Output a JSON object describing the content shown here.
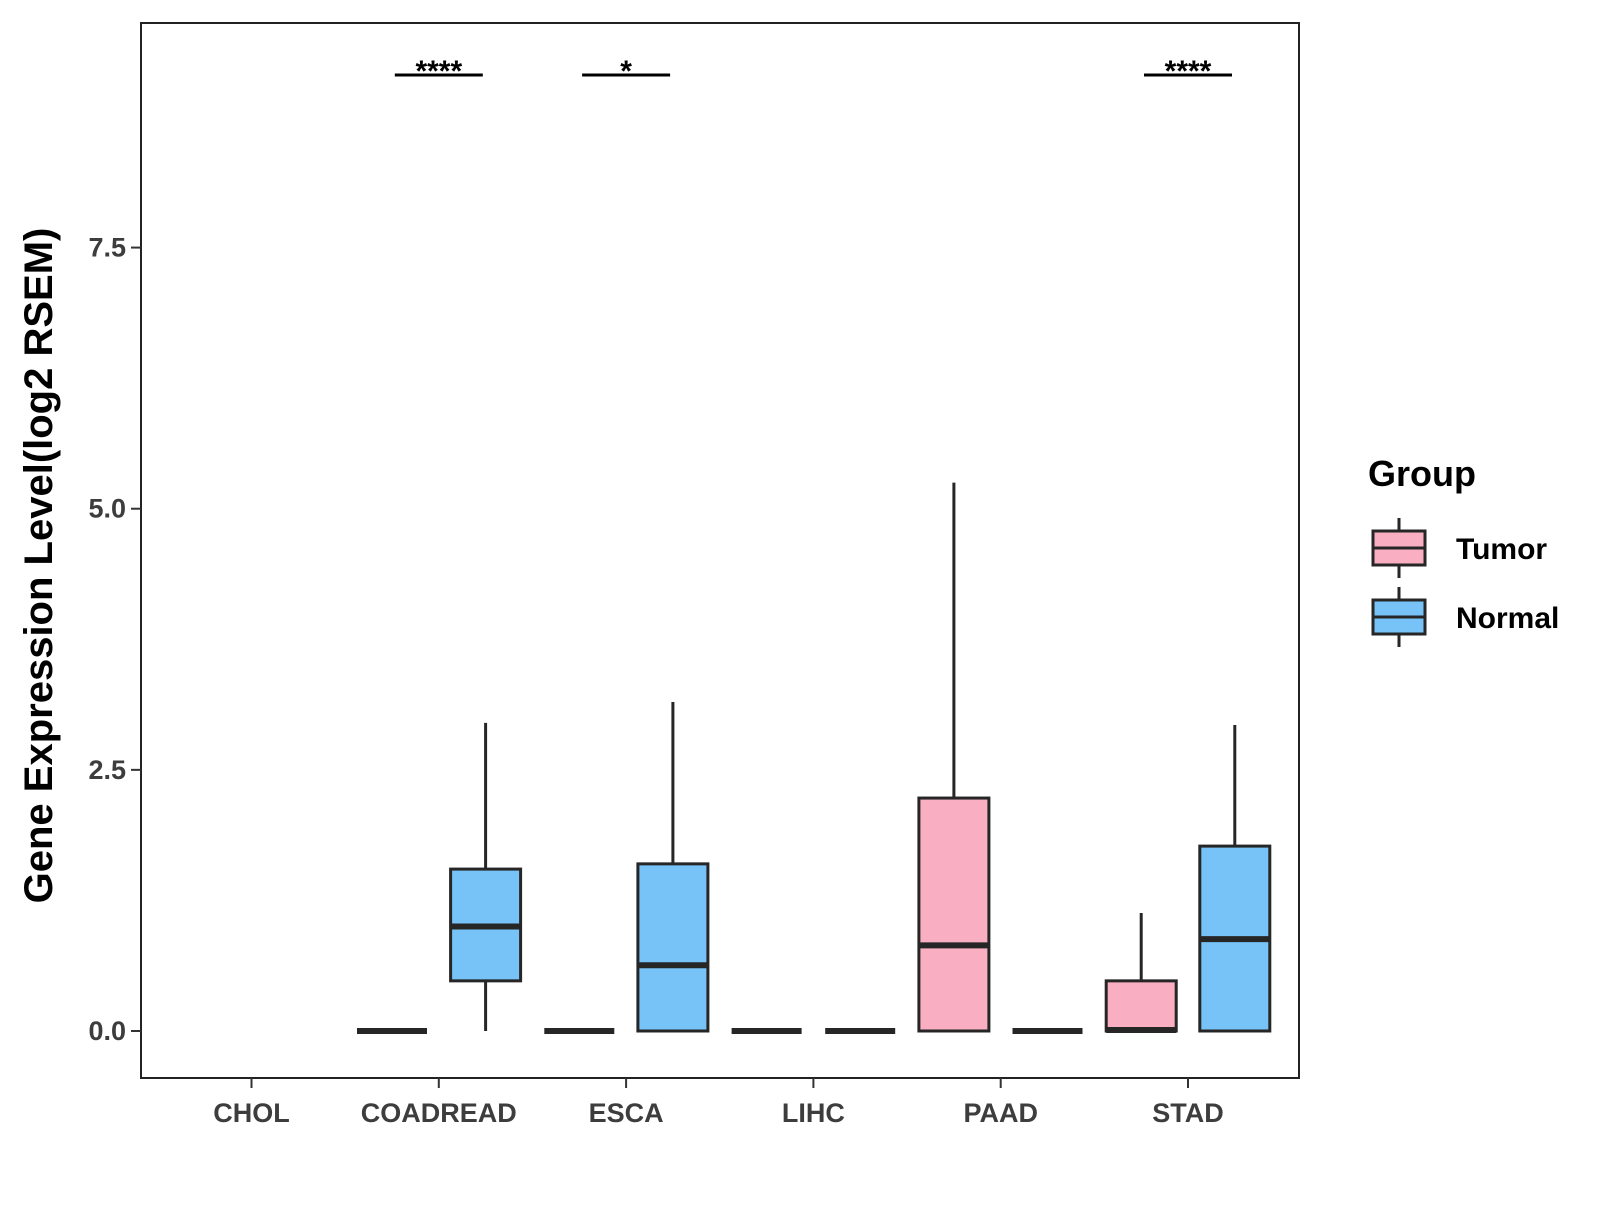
{
  "chart_data": {
    "type": "boxplot",
    "title": "",
    "xlabel": "",
    "ylabel": "Gene Expression Level(log2 RSEM)",
    "ylim": [
      -0.45,
      9.65
    ],
    "yticks": [
      "0.0",
      "2.5",
      "5.0",
      "7.5"
    ],
    "ytick_values": [
      0,
      2.5,
      5.0,
      7.5
    ],
    "categories": [
      "CHOL",
      "COADREAD",
      "ESCA",
      "LIHC",
      "PAAD",
      "STAD"
    ],
    "legend": {
      "title": "Group",
      "position": "right",
      "entries": [
        {
          "name": "Tumor",
          "color": "#F9AFC1"
        },
        {
          "name": "Normal",
          "color": "#77C2F7"
        }
      ]
    },
    "series": [
      {
        "name": "Tumor",
        "color": "#F9AFC1",
        "boxes": [
          null,
          {
            "category": "COADREAD",
            "min": 0,
            "q1": 0,
            "median": 0,
            "q3": 0,
            "max": 0
          },
          {
            "category": "ESCA",
            "min": 0,
            "q1": 0,
            "median": 0,
            "q3": 0,
            "max": 0
          },
          {
            "category": "LIHC",
            "min": 0,
            "q1": 0,
            "median": 0,
            "q3": 0,
            "max": 0
          },
          {
            "category": "PAAD",
            "min": 0,
            "q1": 0,
            "median": 0.82,
            "q3": 2.23,
            "max": 5.25
          },
          {
            "category": "STAD",
            "min": 0,
            "q1": 0,
            "median": 0.01,
            "q3": 0.48,
            "max": 1.13
          }
        ]
      },
      {
        "name": "Normal",
        "color": "#77C2F7",
        "boxes": [
          null,
          {
            "category": "COADREAD",
            "min": 0,
            "q1": 0.48,
            "median": 1.0,
            "q3": 1.55,
            "max": 2.95
          },
          {
            "category": "ESCA",
            "min": 0,
            "q1": 0,
            "median": 0.63,
            "q3": 1.6,
            "max": 3.15
          },
          {
            "category": "LIHC",
            "min": 0,
            "q1": 0,
            "median": 0,
            "q3": 0,
            "max": 0
          },
          {
            "category": "PAAD",
            "min": 0,
            "q1": 0,
            "median": 0,
            "q3": 0,
            "max": 0
          },
          {
            "category": "STAD",
            "min": 0,
            "q1": 0,
            "median": 0.88,
            "q3": 1.77,
            "max": 2.93
          }
        ]
      }
    ],
    "significance": [
      {
        "category": "COADREAD",
        "label": "****"
      },
      {
        "category": "ESCA",
        "label": "*"
      },
      {
        "category": "STAD",
        "label": "****"
      }
    ]
  }
}
